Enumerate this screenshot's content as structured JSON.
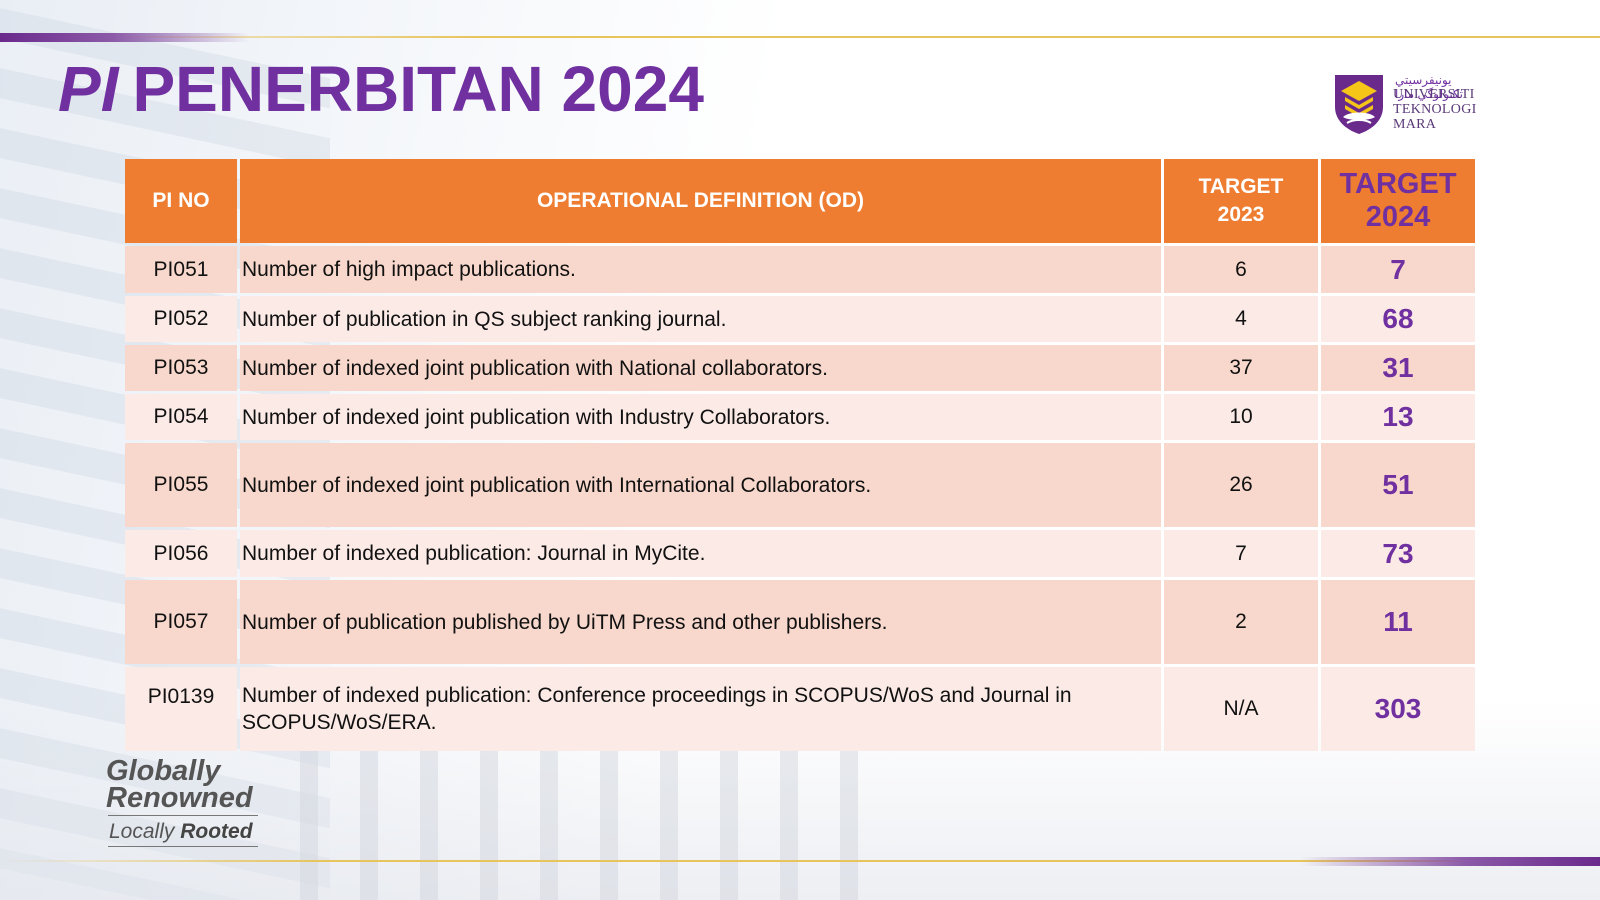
{
  "title": {
    "prefix": "PI",
    "text": "PENERBITAN 2024"
  },
  "logo": {
    "jawi": "ﯾﻮﻧﯿﻔﺮﺳﯿﺘﻲ ﺗﻜﻨﻮﻟﻮﮔﻲ مارا",
    "line1": "UNIVERSITI",
    "line2": "TEKNOLOGI",
    "line3": "MARA"
  },
  "table": {
    "headers": {
      "pi_no": "PI NO",
      "od": "OPERATIONAL DEFINITION (OD)",
      "target2023_line1": "TARGET",
      "target2023_line2": "2023",
      "target2024_line1": "TARGET",
      "target2024_line2": "2024"
    },
    "rows": [
      {
        "pi": "PI051",
        "od": "Number of high impact publications.",
        "t2023": "6",
        "t2024": "7"
      },
      {
        "pi": "PI052",
        "od": "Number of publication in QS subject ranking journal.",
        "t2023": "4",
        "t2024": "68"
      },
      {
        "pi": "PI053",
        "od": "Number of indexed joint publication with National collaborators.",
        "t2023": "37",
        "t2024": "31"
      },
      {
        "pi": "PI054",
        "od": "Number of indexed joint publication with Industry Collaborators.",
        "t2023": "10",
        "t2024": "13"
      },
      {
        "pi": "PI055",
        "od": "Number of indexed joint publication with International Collaborators.",
        "t2023": "26",
        "t2024": "51"
      },
      {
        "pi": "PI056",
        "od": "Number of indexed publication: Journal in MyCite.",
        "t2023": "7",
        "t2024": "73"
      },
      {
        "pi": "PI057",
        "od": "Number of publication published by UiTM Press and other publishers.",
        "t2023": "2",
        "t2024": "11"
      },
      {
        "pi": "PI0139",
        "od": "Number of indexed publication: Conference proceedings in SCOPUS/WoS and Journal in SCOPUS/WoS/ERA.",
        "t2023": "N/A",
        "t2024": "303"
      }
    ]
  },
  "tagline": {
    "line1": "Globally",
    "line2": "Renowned",
    "locally": "Locally",
    "rooted": "Rooted"
  },
  "colors": {
    "title_purple": "#7030a0",
    "header_orange": "#ee7d31",
    "row_dark": "#f8d8cc",
    "row_light": "#fbeae6",
    "gold_line": "#e8c45c"
  }
}
